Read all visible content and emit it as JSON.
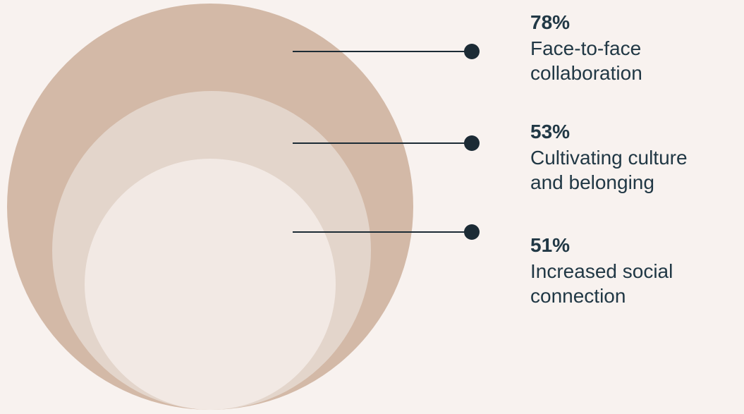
{
  "chart_data": {
    "type": "nested-circle",
    "unit": "%",
    "series": [
      {
        "value": 78,
        "label_lines": [
          "Face-to-face",
          "collaboration"
        ],
        "color": "#d3b9a7"
      },
      {
        "value": 53,
        "label_lines": [
          "Cultivating culture",
          "and belonging"
        ],
        "color": "#e3d5cb"
      },
      {
        "value": 51,
        "label_lines": [
          "Increased social",
          "connection"
        ],
        "color": "#f2e9e4"
      }
    ],
    "values_display": [
      "78%",
      "53%",
      "51%"
    ]
  },
  "colors": {
    "background": "#f8f2ef",
    "text": "#213845",
    "leader_line": "#1c2b35"
  }
}
